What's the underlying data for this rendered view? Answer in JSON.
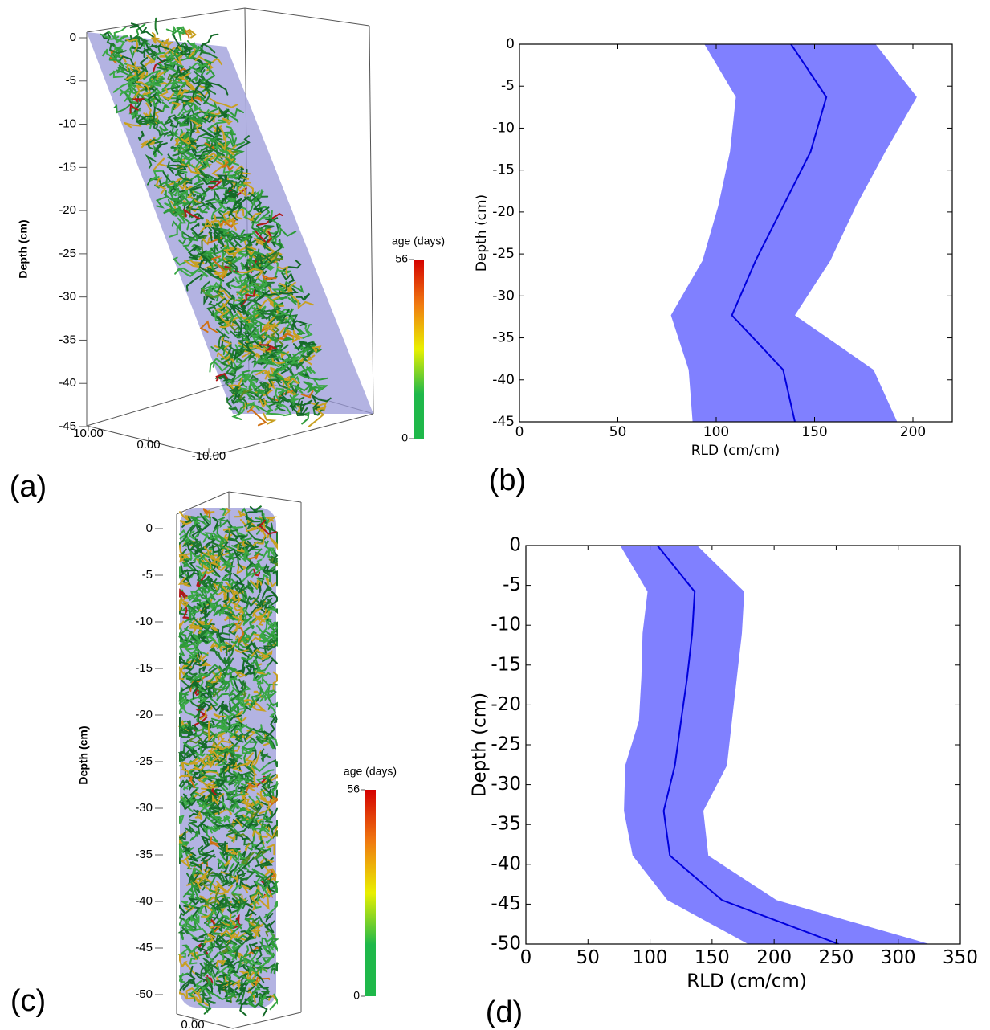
{
  "chart_data": [
    {
      "type": "render3d",
      "panel_label": "(a)",
      "ylabel": "Depth (cm)",
      "ylim": [
        -45,
        0
      ],
      "yticks": [
        0,
        -5,
        -10,
        -15,
        -20,
        -25,
        -30,
        -35,
        -40,
        -45
      ],
      "xlim": [
        12,
        -12
      ],
      "xticks": [
        {
          "value": 10,
          "label": "10.00"
        },
        {
          "value": 0,
          "label": "0.00"
        },
        {
          "value": -10,
          "label": "-10.00"
        }
      ],
      "colorbar": {
        "label": "age (days)",
        "lim": [
          0,
          56
        ],
        "ticks": [
          0,
          56
        ],
        "colors": [
          "#1fb84a",
          "#1fb84a",
          "#e9f000",
          "#f07a10",
          "#d40000"
        ]
      }
    },
    {
      "type": "line",
      "panel_label": "(b)",
      "xlabel": "RLD (cm/cm)",
      "ylabel": "Depth (cm)",
      "xlim": [
        0,
        220
      ],
      "xticks": [
        0,
        50,
        100,
        150,
        200
      ],
      "ylim": [
        -45,
        0
      ],
      "yticks": [
        0,
        -5,
        -10,
        -15,
        -20,
        -25,
        -30,
        -35,
        -40,
        -45
      ],
      "depths": [
        0,
        -6.3,
        -12.8,
        -19.3,
        -25.8,
        -32.3,
        -38.8,
        -45
      ],
      "values": [
        138,
        156,
        148,
        134,
        120,
        108,
        134,
        140
      ],
      "lower": [
        94,
        110,
        107,
        101,
        93,
        77,
        86,
        88
      ],
      "upper": [
        181,
        202,
        186,
        171,
        158,
        140,
        180,
        192
      ],
      "color": "#0000dd",
      "band_color": "#8080ff"
    },
    {
      "type": "render3d",
      "panel_label": "(c)",
      "ylabel": "Depth (cm)",
      "ylim": [
        -50,
        0
      ],
      "yticks": [
        0,
        -5,
        -10,
        -15,
        -20,
        -25,
        -30,
        -35,
        -40,
        -45,
        -50
      ],
      "xlim": [
        -5,
        5
      ],
      "xticks": [
        {
          "value": 0,
          "label": "0.00"
        }
      ],
      "colorbar": {
        "label": "age (days)",
        "lim": [
          0,
          56
        ],
        "ticks": [
          0,
          56
        ],
        "colors": [
          "#1fb84a",
          "#1fb84a",
          "#e9f000",
          "#f07a10",
          "#d40000"
        ]
      }
    },
    {
      "type": "line",
      "panel_label": "(d)",
      "xlabel": "RLD (cm/cm)",
      "ylabel": "Depth (cm)",
      "xlim": [
        0,
        350
      ],
      "xticks": [
        0,
        50,
        100,
        150,
        200,
        250,
        300,
        350
      ],
      "ylim": [
        -50,
        0
      ],
      "yticks": [
        0,
        -5,
        -10,
        -15,
        -20,
        -25,
        -30,
        -35,
        -40,
        -45,
        -50
      ],
      "depths": [
        0,
        -5.8,
        -11,
        -16.5,
        -22,
        -27.6,
        -33.3,
        -38.9,
        -44.5,
        -50
      ],
      "values": [
        106,
        136,
        134,
        130,
        125,
        120,
        111,
        116,
        158,
        252
      ],
      "lower": [
        76,
        98,
        94,
        93,
        91,
        80,
        79,
        86,
        114,
        179
      ],
      "upper": [
        138,
        176,
        174,
        170,
        166,
        162,
        143,
        147,
        202,
        325
      ],
      "color": "#0000dd",
      "band_color": "#8080ff"
    }
  ]
}
